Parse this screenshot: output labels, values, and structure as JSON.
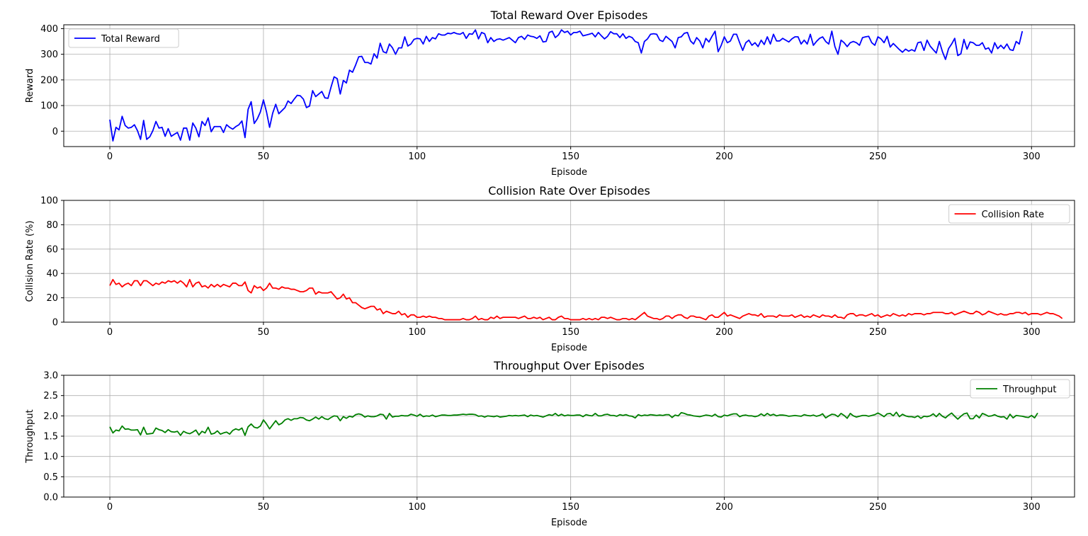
{
  "chart_data": [
    {
      "type": "line",
      "title": "Total Reward Over Episodes",
      "xlabel": "Episode",
      "ylabel": "Reward",
      "xlim": [
        -15,
        314
      ],
      "ylim": [
        -60,
        415
      ],
      "xticks": [
        0,
        50,
        100,
        150,
        200,
        250,
        300
      ],
      "yticks": [
        0,
        100,
        200,
        300,
        400
      ],
      "grid": true,
      "legend_position": "upper-left",
      "series": [
        {
          "name": "Total Reward",
          "color": "#0000ff",
          "x_start": 0,
          "x_step": 1,
          "values": [
            45,
            -38,
            15,
            5,
            58,
            22,
            12,
            15,
            25,
            2,
            -32,
            42,
            -32,
            -22,
            2,
            38,
            12,
            15,
            -20,
            10,
            -20,
            -12,
            -5,
            -35,
            12,
            12,
            -35,
            32,
            12,
            -22,
            38,
            22,
            52,
            -2,
            18,
            18,
            18,
            -5,
            25,
            15,
            8,
            18,
            25,
            40,
            -25,
            85,
            115,
            30,
            48,
            75,
            122,
            75,
            15,
            70,
            105,
            68,
            80,
            92,
            118,
            108,
            125,
            140,
            138,
            125,
            92,
            98,
            158,
            135,
            145,
            155,
            130,
            128,
            172,
            212,
            205,
            145,
            198,
            188,
            238,
            230,
            258,
            290,
            292,
            268,
            268,
            262,
            302,
            285,
            343,
            310,
            305,
            340,
            325,
            300,
            325,
            325,
            368,
            332,
            340,
            358,
            362,
            360,
            340,
            370,
            350,
            365,
            360,
            380,
            375,
            375,
            382,
            380,
            385,
            380,
            378,
            385,
            362,
            380,
            378,
            395,
            360,
            385,
            380,
            345,
            365,
            350,
            358,
            360,
            355,
            360,
            365,
            355,
            345,
            365,
            370,
            358,
            375,
            370,
            368,
            362,
            372,
            348,
            350,
            385,
            390,
            365,
            375,
            395,
            385,
            390,
            375,
            385,
            385,
            390,
            372,
            375,
            378,
            382,
            368,
            385,
            372,
            360,
            370,
            388,
            380,
            380,
            365,
            380,
            362,
            370,
            365,
            350,
            345,
            305,
            350,
            360,
            378,
            380,
            378,
            355,
            350,
            370,
            360,
            350,
            325,
            365,
            368,
            382,
            385,
            352,
            340,
            365,
            352,
            325,
            362,
            348,
            370,
            390,
            310,
            335,
            368,
            345,
            352,
            378,
            378,
            345,
            315,
            345,
            355,
            335,
            345,
            330,
            355,
            338,
            368,
            340,
            378,
            352,
            352,
            362,
            355,
            348,
            360,
            368,
            368,
            340,
            355,
            340,
            378,
            335,
            350,
            362,
            368,
            350,
            340,
            390,
            330,
            300,
            355,
            345,
            330,
            345,
            350,
            345,
            335,
            365,
            368,
            370,
            345,
            335,
            368,
            360,
            345,
            370,
            328,
            342,
            330,
            318,
            308,
            320,
            312,
            318,
            312,
            345,
            348,
            315,
            355,
            332,
            318,
            305,
            350,
            310,
            280,
            322,
            340,
            362,
            295,
            302,
            358,
            320,
            348,
            345,
            335,
            335,
            345,
            320,
            325,
            305,
            345,
            322,
            335,
            322,
            340,
            318,
            315,
            350,
            340,
            390
          ]
        }
      ]
    },
    {
      "type": "line",
      "title": "Collision Rate Over Episodes",
      "xlabel": "Episode",
      "ylabel": "Collision Rate (%)",
      "xlim": [
        -15,
        314
      ],
      "ylim": [
        0,
        100
      ],
      "xticks": [
        0,
        50,
        100,
        150,
        200,
        250,
        300
      ],
      "yticks": [
        0,
        20,
        40,
        60,
        80,
        100
      ],
      "grid": true,
      "legend_position": "upper-right",
      "series": [
        {
          "name": "Collision Rate",
          "color": "#ff0000",
          "x_start": 0,
          "x_step": 1,
          "values": [
            30,
            35,
            31,
            32,
            29,
            31,
            32,
            30,
            34,
            34,
            30,
            34,
            34,
            32,
            30,
            32,
            31,
            33,
            32,
            34,
            33,
            34,
            32,
            34,
            32,
            29,
            35,
            29,
            32,
            33,
            29,
            30,
            28,
            31,
            29,
            31,
            29,
            31,
            30,
            29,
            32,
            32,
            30,
            30,
            33,
            26,
            24,
            30,
            28,
            29,
            26,
            28,
            32,
            28,
            28,
            27,
            29,
            28,
            28,
            27,
            27,
            26,
            25,
            25,
            26,
            28,
            28,
            23,
            25,
            24,
            24,
            24,
            25,
            22,
            19,
            20,
            23,
            19,
            20,
            16,
            16,
            14,
            12,
            11,
            12,
            13,
            13,
            10,
            11,
            7,
            9,
            8,
            7,
            7,
            9,
            6,
            7,
            4,
            6,
            6,
            4,
            4,
            5,
            4,
            5,
            4,
            4,
            3,
            3,
            2,
            2,
            2,
            2,
            2,
            2,
            3,
            2,
            2,
            3,
            5,
            2,
            3,
            2,
            2,
            4,
            3,
            5,
            3,
            4,
            4,
            4,
            4,
            4,
            3,
            4,
            5,
            3,
            3,
            4,
            3,
            4,
            2,
            3,
            4,
            2,
            2,
            4,
            5,
            3,
            3,
            2,
            2,
            2,
            2,
            3,
            2,
            3,
            2,
            3,
            2,
            4,
            4,
            3,
            4,
            3,
            2,
            2,
            3,
            3,
            2,
            3,
            2,
            4,
            6,
            8,
            5,
            4,
            3,
            3,
            2,
            3,
            5,
            5,
            3,
            5,
            6,
            6,
            4,
            3,
            5,
            5,
            4,
            4,
            3,
            2,
            5,
            6,
            4,
            4,
            6,
            8,
            5,
            6,
            5,
            4,
            3,
            5,
            6,
            7,
            6,
            6,
            5,
            7,
            4,
            5,
            5,
            5,
            4,
            6,
            5,
            5,
            5,
            6,
            4,
            5,
            6,
            4,
            5,
            4,
            6,
            5,
            4,
            6,
            5,
            5,
            4,
            6,
            4,
            4,
            3,
            6,
            7,
            7,
            5,
            6,
            6,
            5,
            6,
            7,
            5,
            6,
            4,
            5,
            6,
            5,
            7,
            6,
            5,
            6,
            5,
            7,
            6,
            7,
            7,
            7,
            6,
            7,
            7,
            8,
            8,
            8,
            8,
            7,
            7,
            8,
            6,
            7,
            8,
            9,
            8,
            7,
            7,
            9,
            8,
            6,
            7,
            9,
            8,
            7,
            6,
            7,
            6,
            6,
            7,
            7,
            8,
            8,
            7,
            8,
            6,
            7,
            7,
            7,
            6,
            7,
            8,
            7,
            7,
            6,
            5,
            3
          ]
        }
      ]
    },
    {
      "type": "line",
      "title": "Throughput Over Episodes",
      "xlabel": "Episode",
      "ylabel": "Throughput",
      "xlim": [
        -15,
        314
      ],
      "ylim": [
        0,
        3.0
      ],
      "xticks": [
        0,
        50,
        100,
        150,
        200,
        250,
        300
      ],
      "yticks": [
        0.0,
        0.5,
        1.0,
        1.5,
        2.0,
        2.5,
        3.0
      ],
      "grid": true,
      "legend_position": "upper-right",
      "series": [
        {
          "name": "Throughput",
          "color": "#008000",
          "x_start": 0,
          "x_step": 1,
          "values": [
            1.73,
            1.58,
            1.65,
            1.63,
            1.75,
            1.67,
            1.68,
            1.65,
            1.65,
            1.66,
            1.53,
            1.72,
            1.55,
            1.56,
            1.57,
            1.7,
            1.66,
            1.64,
            1.59,
            1.66,
            1.61,
            1.6,
            1.62,
            1.52,
            1.62,
            1.58,
            1.56,
            1.6,
            1.65,
            1.53,
            1.62,
            1.58,
            1.72,
            1.55,
            1.57,
            1.63,
            1.55,
            1.58,
            1.6,
            1.55,
            1.64,
            1.68,
            1.65,
            1.7,
            1.52,
            1.73,
            1.8,
            1.72,
            1.7,
            1.75,
            1.9,
            1.8,
            1.68,
            1.78,
            1.88,
            1.78,
            1.82,
            1.9,
            1.93,
            1.89,
            1.93,
            1.93,
            1.96,
            1.95,
            1.9,
            1.88,
            1.92,
            1.97,
            1.92,
            1.98,
            1.93,
            1.91,
            1.96,
            2.0,
            1.99,
            1.88,
            1.98,
            1.94,
            1.99,
            1.97,
            2.03,
            2.05,
            2.03,
            1.97,
            2.0,
            1.98,
            1.98,
            2.0,
            2.04,
            2.03,
            1.92,
            2.06,
            1.97,
            1.99,
            1.99,
            2.01,
            2.0,
            2.0,
            2.04,
            2.02,
            1.99,
            2.04,
            1.98,
            2.0,
            1.99,
            2.02,
            1.98,
            2.0,
            2.02,
            2.02,
            2.01,
            2.01,
            2.02,
            2.02,
            2.03,
            2.04,
            2.03,
            2.04,
            2.04,
            2.03,
            1.99,
            2.0,
            1.97,
            2.0,
            1.99,
            1.98,
            2.0,
            1.97,
            1.98,
            1.99,
            2.01,
            2.0,
            2.01,
            2.0,
            2.01,
            2.02,
            1.98,
            2.02,
            2.0,
            2.01,
            1.99,
            1.97,
            2.0,
            2.03,
            2.01,
            2.06,
            2.0,
            2.04,
            2.0,
            2.02,
            2.01,
            2.01,
            2.02,
            2.02,
            1.98,
            2.03,
            2.01,
            2.0,
            2.06,
            2.0,
            2.0,
            2.03,
            2.04,
            2.01,
            2.01,
            1.99,
            2.03,
            2.01,
            2.03,
            2.0,
            1.99,
            1.95,
            2.03,
            2.0,
            2.02,
            2.01,
            2.03,
            2.02,
            2.01,
            2.02,
            2.01,
            2.03,
            2.03,
            1.96,
            2.02,
            2.0,
            2.08,
            2.06,
            2.03,
            2.02,
            2.0,
            1.99,
            1.98,
            2.0,
            2.02,
            2.01,
            1.99,
            2.04,
            1.98,
            1.97,
            2.02,
            2.0,
            2.03,
            2.05,
            2.05,
            1.98,
            2.01,
            2.02,
            2.0,
            2.0,
            1.98,
            2.0,
            2.05,
            2.0,
            2.06,
            2.01,
            2.04,
            2.0,
            2.02,
            2.02,
            2.01,
            1.99,
            2.0,
            2.01,
            2.0,
            1.99,
            2.03,
            2.01,
            2.0,
            2.02,
            1.99,
            2.01,
            2.05,
            1.95,
            2.0,
            2.04,
            2.03,
            1.98,
            2.06,
            2.01,
            1.94,
            2.06,
            2.0,
            1.97,
            1.99,
            2.01,
            2.01,
            1.99,
            2.01,
            2.03,
            2.07,
            2.03,
            1.98,
            2.05,
            2.06,
            2.0,
            2.09,
            1.98,
            2.04,
            2.0,
            1.98,
            1.98,
            1.96,
            2.0,
            1.94,
            1.99,
            1.98,
            2.0,
            2.05,
            1.98,
            2.06,
            1.99,
            1.95,
            2.02,
            2.07,
            1.99,
            1.92,
            1.99,
            2.05,
            2.07,
            1.93,
            1.93,
            2.02,
            1.95,
            2.06,
            2.03,
            1.99,
            2.0,
            2.03,
            1.99,
            1.97,
            1.98,
            1.92,
            2.04,
            1.95,
            2.01,
            2.0,
            1.99,
            1.97,
            1.96,
            2.01,
            1.95,
            2.07
          ]
        }
      ]
    }
  ]
}
